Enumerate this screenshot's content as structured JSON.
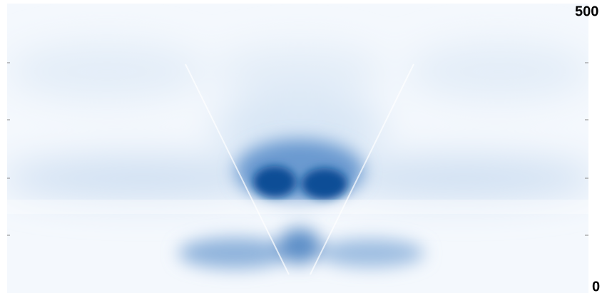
{
  "colorbar": {
    "max_label": "500",
    "min_label": "0"
  }
}
